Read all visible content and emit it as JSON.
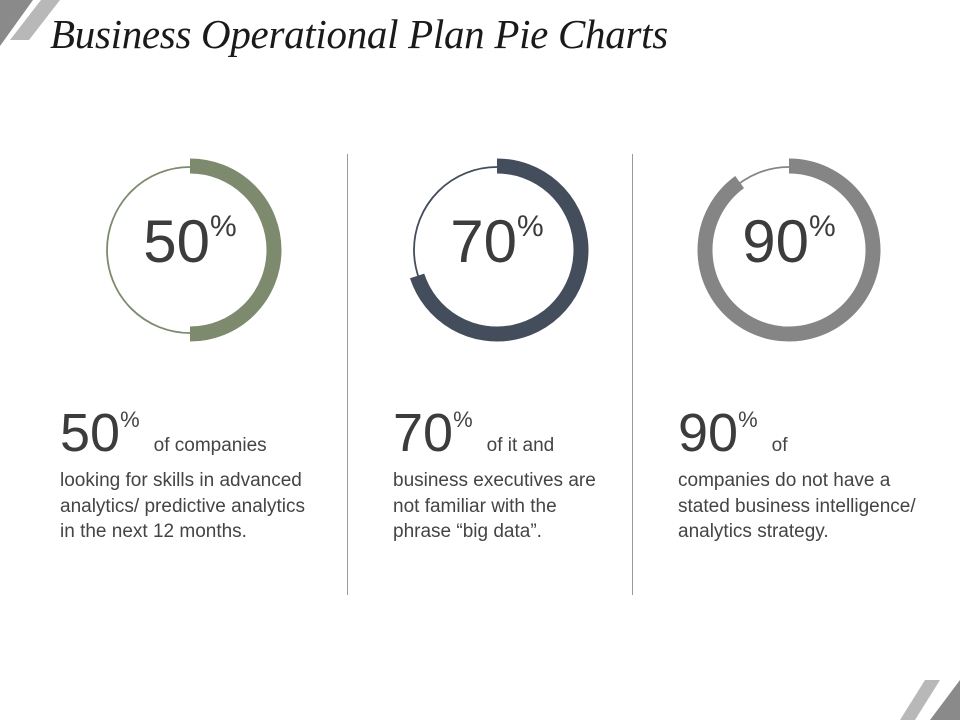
{
  "title": "Business Operational Plan Pie Charts",
  "chart_data": [
    {
      "type": "pie",
      "values": [
        50
      ],
      "unit": "%",
      "color": "#7d8a6e",
      "base_color": "#7d8a6e"
    },
    {
      "type": "pie",
      "values": [
        70
      ],
      "unit": "%",
      "color": "#434d5c",
      "base_color": "#434d5c"
    },
    {
      "type": "pie",
      "values": [
        90
      ],
      "unit": "%",
      "color": "#858585",
      "base_color": "#858585"
    }
  ],
  "stats": [
    {
      "number": "50",
      "unit": "%",
      "lead": "of companies",
      "rest": "looking for skills in advanced analytics/ predictive analytics in the next 12 months."
    },
    {
      "number": "70",
      "unit": "%",
      "lead": "of it and",
      "rest": "business executives are not familiar with the phrase “big data”."
    },
    {
      "number": "90",
      "unit": "%",
      "lead": "of",
      "rest": "companies do not have a stated business intelligence/ analytics strategy."
    }
  ],
  "colors": {
    "corner": "#7f7f7f",
    "divider": "#9a9a9a"
  }
}
